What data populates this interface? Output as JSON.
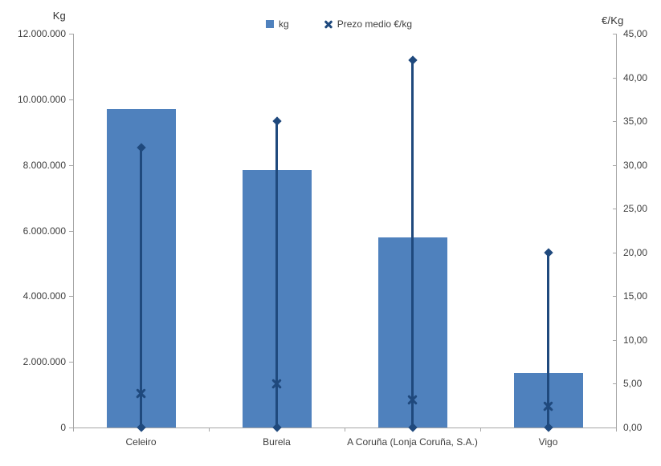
{
  "chart_data": {
    "type": "bar",
    "title": "",
    "categories": [
      "Celeiro",
      "Burela",
      "A Coruña (Lonja Coruña, S.A.)",
      "Vigo"
    ],
    "series": [
      {
        "name": "kg",
        "type": "bar",
        "axis": "left",
        "values": [
          9700000,
          7850000,
          5800000,
          1650000
        ],
        "color": "#4F81BD"
      },
      {
        "name": "Prezo medio €/kg",
        "type": "line-high-low-with-x-marker",
        "axis": "right",
        "values": [
          3.9,
          5.0,
          3.2,
          2.4
        ],
        "range_high": [
          32.0,
          35.0,
          42.0,
          20.0
        ],
        "range_low": [
          0,
          0,
          0,
          0
        ],
        "marker": "x",
        "color": "#1F497D"
      }
    ],
    "left_axis": {
      "title": "Kg",
      "min": 0,
      "max": 12000000,
      "step": 2000000,
      "tick_labels": [
        "0",
        "2.000.000",
        "4.000.000",
        "6.000.000",
        "8.000.000",
        "10.000.000",
        "12.000.000"
      ]
    },
    "right_axis": {
      "title": "€/Kg",
      "min": 0,
      "max": 45,
      "step": 5,
      "tick_labels": [
        "0,00",
        "5,00",
        "10,00",
        "15,00",
        "20,00",
        "25,00",
        "30,00",
        "35,00",
        "40,00",
        "45,00"
      ]
    },
    "grid": false,
    "legend_position": "top-center",
    "colors": {
      "bar": "#4F81BD",
      "price_line": "#1F497D",
      "axis": "#A6A6A6",
      "text": "#404040",
      "background": "#FFFFFF"
    }
  }
}
